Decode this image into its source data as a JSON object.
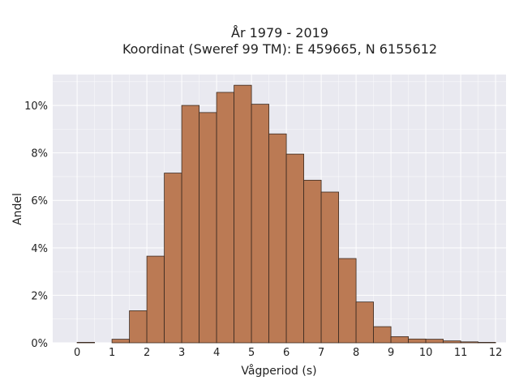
{
  "chart_data": {
    "type": "bar",
    "title": [
      "År 1979 - 2019",
      "Koordinat (Sweref 99 TM): E 459665, N 6155612"
    ],
    "xlabel": "Vågperiod (s)",
    "ylabel": "Andel",
    "x_ticks": [
      "0",
      "1",
      "2",
      "3",
      "4",
      "5",
      "6",
      "7",
      "8",
      "9",
      "10",
      "11",
      "12"
    ],
    "y_ticks": [
      "0%",
      "2%",
      "4%",
      "6%",
      "8%",
      "10%"
    ],
    "xlim": [
      -0.7,
      12.3
    ],
    "ylim": [
      0,
      11.3
    ],
    "bin_width": 0.5,
    "bins": [
      {
        "x0": 0.0,
        "value": 0.02
      },
      {
        "x0": 1.0,
        "value": 0.15
      },
      {
        "x0": 1.5,
        "value": 1.35
      },
      {
        "x0": 2.0,
        "value": 3.65
      },
      {
        "x0": 2.5,
        "value": 7.15
      },
      {
        "x0": 3.0,
        "value": 10.0
      },
      {
        "x0": 3.5,
        "value": 9.7
      },
      {
        "x0": 4.0,
        "value": 10.55
      },
      {
        "x0": 4.5,
        "value": 10.85
      },
      {
        "x0": 5.0,
        "value": 10.05
      },
      {
        "x0": 5.5,
        "value": 8.8
      },
      {
        "x0": 6.0,
        "value": 7.95
      },
      {
        "x0": 6.5,
        "value": 6.85
      },
      {
        "x0": 7.0,
        "value": 6.35
      },
      {
        "x0": 7.5,
        "value": 3.55
      },
      {
        "x0": 8.0,
        "value": 1.72
      },
      {
        "x0": 8.5,
        "value": 0.68
      },
      {
        "x0": 9.0,
        "value": 0.26
      },
      {
        "x0": 9.5,
        "value": 0.16
      },
      {
        "x0": 10.0,
        "value": 0.15
      },
      {
        "x0": 10.5,
        "value": 0.08
      },
      {
        "x0": 11.0,
        "value": 0.04
      },
      {
        "x0": 11.5,
        "value": 0.02
      }
    ],
    "grid": true,
    "colors": {
      "bar_fill": "#bb7a54",
      "bar_edge": "#3b2a20",
      "plot_background": "#e9e9f0",
      "grid": "#ffffff"
    }
  }
}
